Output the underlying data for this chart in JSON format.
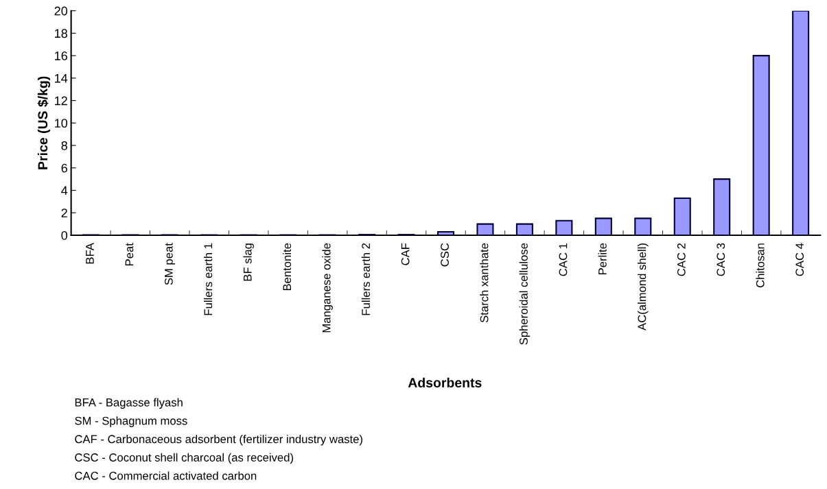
{
  "chart_data": {
    "type": "bar",
    "xlabel": "Adsorbents",
    "ylabel": "Price (US $/kg)",
    "categories": [
      "BFA",
      "Peat",
      "SM peat",
      "Fullers earth 1",
      "BF slag",
      "Bentonite",
      "Manganese oxide",
      "Fullers earth 2",
      "CAF",
      "CSC",
      "Starch xanthate",
      "Spheroidal cellulose",
      "CAC 1",
      "Perlite",
      "AC(almond shell)",
      "CAC 2",
      "CAC 3",
      "Chitosan",
      "CAC 4"
    ],
    "values": [
      0.02,
      0.02,
      0.02,
      0.02,
      0.02,
      0.02,
      0.02,
      0.05,
      0.05,
      0.3,
      1.0,
      1.0,
      1.3,
      1.5,
      1.5,
      3.3,
      5.0,
      16.0,
      20.0
    ],
    "color": "#9999ff",
    "ylim": [
      0,
      20
    ],
    "yticks": [
      0,
      2,
      4,
      6,
      8,
      10,
      12,
      14,
      16,
      18,
      20
    ],
    "grid": false,
    "annotations": [
      "BFA - Bagasse flyash",
      "SM - Sphagnum moss",
      "CAF - Carbonaceous adsorbent (fertilizer industry waste)",
      "CSC - Coconut shell charcoal (as received)",
      "CAC - Commercial activated carbon"
    ]
  }
}
